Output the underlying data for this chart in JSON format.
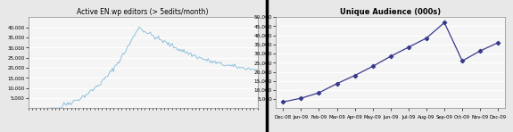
{
  "left_title": "Active EN.wp editors (> 5edits/month)",
  "right_title": "Unique Audience (000s)",
  "left_ylim": [
    0,
    45000
  ],
  "left_yticks": [
    5000,
    10000,
    15000,
    20000,
    25000,
    30000,
    35000,
    40000
  ],
  "right_ylim": [
    0,
    50000
  ],
  "right_yticks": [
    5000,
    10000,
    15000,
    20000,
    25000,
    30000,
    35000,
    40000,
    45000,
    50000
  ],
  "right_data": [
    3500,
    5500,
    8500,
    13500,
    18000,
    23000,
    28500,
    33500,
    38500,
    47000,
    26000,
    31500,
    36000
  ],
  "right_xlabels": [
    "Dec-08",
    "Jan-09",
    "Feb-09",
    "Mar-09",
    "Apr-09",
    "May-09",
    "Jun-09",
    "Jul-09",
    "Aug-09",
    "Sep-09",
    "Oct-09",
    "Nov-09",
    "Dec-09"
  ],
  "line_color_left": "#7fb9d8",
  "line_color_right": "#3a3a8c",
  "marker_color_right": "#3a3a8c",
  "bg_color": "#e8e8e8",
  "plot_bg_color": "#f5f5f5",
  "grid_color": "#ffffff",
  "title_fontsize": 5.5,
  "tick_fontsize": 4.2,
  "ytick_fontsize_left": 4.0,
  "divider_color": "#000000"
}
